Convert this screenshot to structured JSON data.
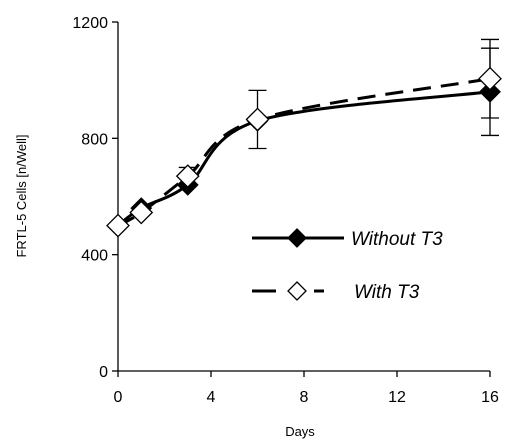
{
  "chart_data": {
    "type": "line",
    "xlabel": "Days",
    "ylabel": "FRTL-5 Cells [n/Well]",
    "xlim": [
      0,
      16
    ],
    "ylim": [
      0,
      1200
    ],
    "xticks": [
      0,
      4,
      8,
      12,
      16
    ],
    "yticks": [
      0,
      400,
      800,
      1200
    ],
    "grid": false,
    "legend_position": "right-center",
    "series": [
      {
        "name": "Without T3",
        "marker": "filled-diamond",
        "line_style": "solid",
        "color": "#000000",
        "x": [
          0,
          1,
          3,
          6,
          16
        ],
        "y": [
          500,
          560,
          640,
          860,
          960
        ],
        "error": [
          null,
          null,
          null,
          null,
          150
        ]
      },
      {
        "name": "With T3",
        "marker": "open-diamond",
        "line_style": "dashed",
        "color": "#000000",
        "x": [
          0,
          1,
          3,
          6,
          16
        ],
        "y": [
          500,
          545,
          670,
          865,
          1005
        ],
        "error": [
          null,
          null,
          30,
          100,
          135
        ]
      }
    ]
  }
}
